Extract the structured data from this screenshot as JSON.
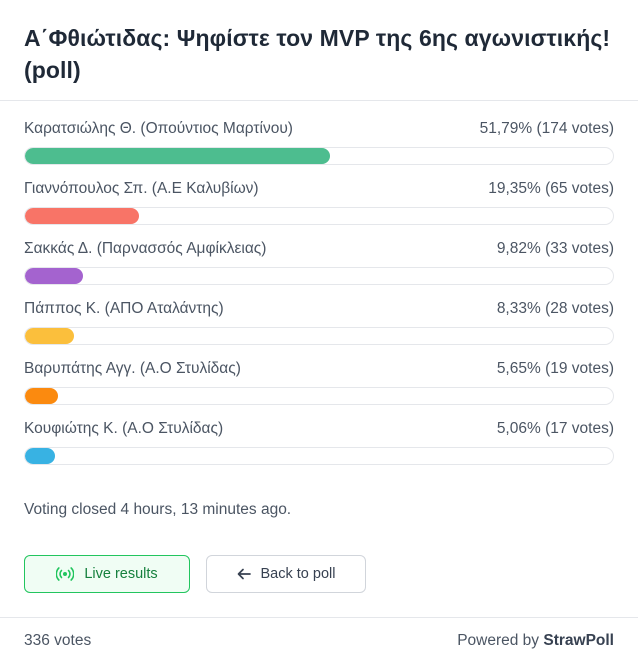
{
  "poll": {
    "title": "Α΄Φθιώτιδας: Ψηφίστε τον MVP της 6ης αγωνιστικής! (poll)",
    "options": [
      {
        "name": "Καρατσιώλης Θ. (Οπούντιος Μαρτίνου)",
        "stat": "51,79% (174 votes)",
        "percent": 51.79,
        "color": "#4dbd8f"
      },
      {
        "name": "Γιαννόπουλος Σπ. (Α.Ε Καλυβίων)",
        "stat": "19,35% (65 votes)",
        "percent": 19.35,
        "color": "#f87467"
      },
      {
        "name": "Σακκάς Δ. (Παρνασσός Αμφίκλειας)",
        "stat": "9,82% (33 votes)",
        "percent": 9.82,
        "color": "#a463cf"
      },
      {
        "name": "Πάππος Κ. (ΑΠΟ Αταλάντης)",
        "stat": "8,33% (28 votes)",
        "percent": 8.33,
        "color": "#fbbf3c"
      },
      {
        "name": "Βαρυπάτης Αγγ. (Α.Ο Στυλίδας)",
        "stat": "5,65% (19 votes)",
        "percent": 5.65,
        "color": "#fb8a0f"
      },
      {
        "name": "Κουφιώτης Κ. (Α.Ο Στυλίδας)",
        "stat": "5,06% (17 votes)",
        "percent": 5.06,
        "color": "#38b2e3"
      }
    ],
    "closed_text": "Voting closed 4 hours, 13 minutes ago."
  },
  "buttons": {
    "live_label": "Live results",
    "live_icon": "broadcast-icon",
    "back_label": "Back to poll",
    "back_icon": "arrow-left-icon"
  },
  "footer": {
    "votes": "336 votes",
    "powered_prefix": "Powered by",
    "brand": "StrawPoll"
  },
  "colors": {
    "live_accent": "#22c55e",
    "live_bg": "#f0fdf4"
  }
}
